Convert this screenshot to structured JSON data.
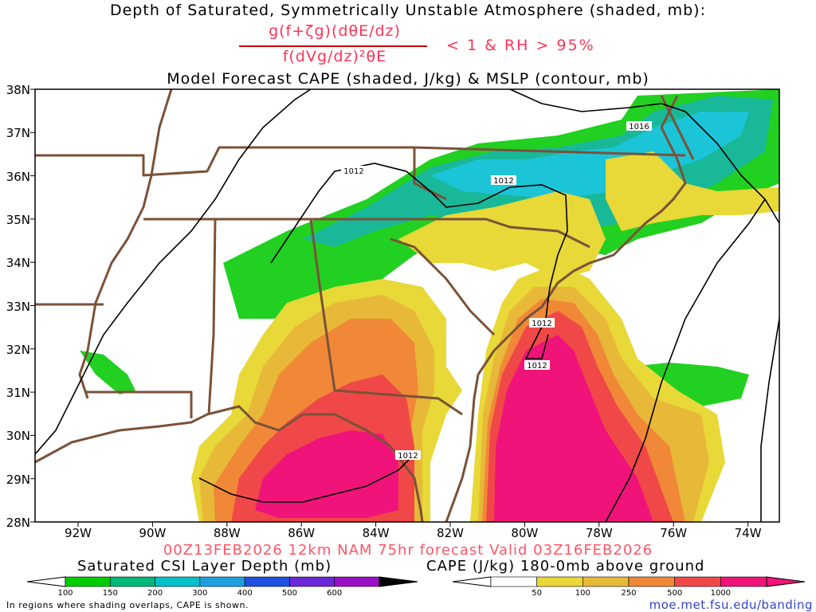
{
  "title_line1": "Depth of Saturated, Symmetrically Unstable Atmosphere (shaded, mb):",
  "formula_numerator": "g(f+ζg)(dθE/dz)",
  "formula_denominator": "f(dVg/dz)²θE",
  "formula_condition": "< 1 & RH > 95%",
  "title_line3": "Model Forecast CAPE (shaded, J/kg) & MSLP (contour, mb)",
  "valid_line": "00Z13FEB2026 12km NAM 75hr forecast Valid 03Z16FEB2026",
  "lat_ticks": [
    "38N",
    "37N",
    "36N",
    "35N",
    "34N",
    "33N",
    "32N",
    "31N",
    "30N",
    "29N",
    "28N"
  ],
  "lon_ticks": [
    "92W",
    "90W",
    "88W",
    "86W",
    "84W",
    "82W",
    "80W",
    "78W",
    "76W",
    "74W"
  ],
  "isobar_labels": [
    "1012",
    "1012",
    "1012",
    "1012",
    "1012",
    "1016"
  ],
  "csi_colorbar": {
    "title": "Saturated CSI Layer Depth (mb)",
    "labels": [
      "100",
      "150",
      "200",
      "300",
      "400",
      "500",
      "600"
    ],
    "colors": [
      "#00cc00",
      "#00b87a",
      "#00c0c8",
      "#1ea0e0",
      "#2050e0",
      "#6a28d8",
      "#9a10c8",
      "#000000"
    ]
  },
  "cape_colorbar": {
    "title": "CAPE (J/kg) 180-0mb above ground",
    "labels": [
      "50",
      "100",
      "250",
      "500",
      "1000"
    ],
    "colors": [
      "#e8d838",
      "#e8b838",
      "#f08838",
      "#f04848",
      "#f0147a"
    ]
  },
  "footnote": "In regions where shading overlaps, CAPE is shown.",
  "credit": "moe.met.fsu.edu/banding"
}
